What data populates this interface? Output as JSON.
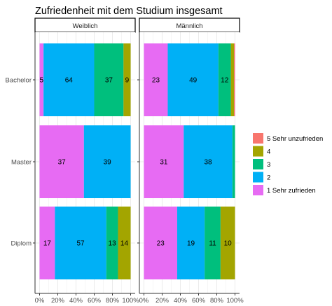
{
  "chart_data": {
    "type": "bar",
    "orientation": "horizontal",
    "stacked": "percent",
    "title": "Zufriedenheit mit dem Studium insgesamt",
    "xlabel": "",
    "ylabel": "",
    "xlim": [
      0,
      100
    ],
    "x_ticks": [
      "0%",
      "20%",
      "40%",
      "60%",
      "80%",
      "100%"
    ],
    "grid": true,
    "legend_position": "right",
    "categories": [
      "Bachelor",
      "Master",
      "Diplom"
    ],
    "facets": [
      "Weiblich",
      "Männlich"
    ],
    "series": [
      {
        "name": "1 Sehr zufrieden",
        "color": "#E76BF3"
      },
      {
        "name": "2",
        "color": "#00B0F6"
      },
      {
        "name": "3",
        "color": "#00BF7D"
      },
      {
        "name": "4",
        "color": "#A3A500"
      },
      {
        "name": "5 Sehr unzufrieden",
        "color": "#F8766D"
      }
    ],
    "legend_order": [
      "5 Sehr unzufrieden",
      "4",
      "3",
      "2",
      "1 Sehr zufrieden"
    ],
    "panels": [
      {
        "facet": "Weiblich",
        "bars": [
          {
            "category": "Bachelor",
            "counts": [
              5,
              64,
              37,
              9,
              0
            ],
            "labels": [
              "5",
              "64",
              "37",
              "9",
              ""
            ]
          },
          {
            "category": "Master",
            "counts": [
              37,
              39,
              0,
              0,
              0
            ],
            "labels": [
              "37",
              "39",
              "",
              "",
              ""
            ]
          },
          {
            "category": "Diplom",
            "counts": [
              17,
              57,
              13,
              14,
              0
            ],
            "labels": [
              "17",
              "57",
              "13",
              "14",
              ""
            ]
          }
        ]
      },
      {
        "facet": "Männlich",
        "bars": [
          {
            "category": "Bachelor",
            "counts": [
              23,
              49,
              12,
              3,
              1
            ],
            "labels": [
              "23",
              "49",
              "12",
              "",
              ""
            ]
          },
          {
            "category": "Master",
            "counts": [
              31,
              38,
              2,
              0,
              0
            ],
            "labels": [
              "31",
              "38",
              "",
              "",
              ""
            ]
          },
          {
            "category": "Diplom",
            "counts": [
              23,
              19,
              11,
              10,
              0
            ],
            "labels": [
              "23",
              "19",
              "11",
              "10",
              ""
            ]
          }
        ]
      }
    ]
  }
}
